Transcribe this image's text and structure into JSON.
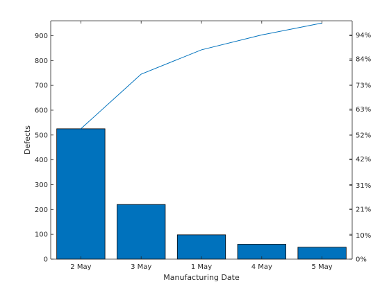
{
  "chart_data": {
    "type": "bar",
    "subtype": "pareto",
    "categories": [
      "2 May",
      "3 May",
      "1 May",
      "4 May",
      "5 May"
    ],
    "values": [
      525,
      220,
      98,
      60,
      48
    ],
    "cumulative": [
      525,
      745,
      843,
      903,
      951
    ],
    "xlabel": "Manufacturing Date",
    "ylabel": "Defects",
    "ylim": [
      0,
      960
    ],
    "yticks": [
      0,
      100,
      200,
      300,
      400,
      500,
      600,
      700,
      800,
      900
    ],
    "right_ticks": [
      {
        "value": 0,
        "label": "0%"
      },
      {
        "value": 96,
        "label": "10%"
      },
      {
        "value": 201.6,
        "label": "21%"
      },
      {
        "value": 297.6,
        "label": "31%"
      },
      {
        "value": 403.2,
        "label": "42%"
      },
      {
        "value": 499.2,
        "label": "52%"
      },
      {
        "value": 604.8,
        "label": "63%"
      },
      {
        "value": 700.8,
        "label": "73%"
      },
      {
        "value": 806.4,
        "label": "84%"
      },
      {
        "value": 902.4,
        "label": "94%"
      }
    ],
    "grid": false,
    "colors": {
      "bar": "#0072BD",
      "bar_edge": "#000000",
      "line": "#0072BD",
      "axis": "#262626"
    }
  }
}
